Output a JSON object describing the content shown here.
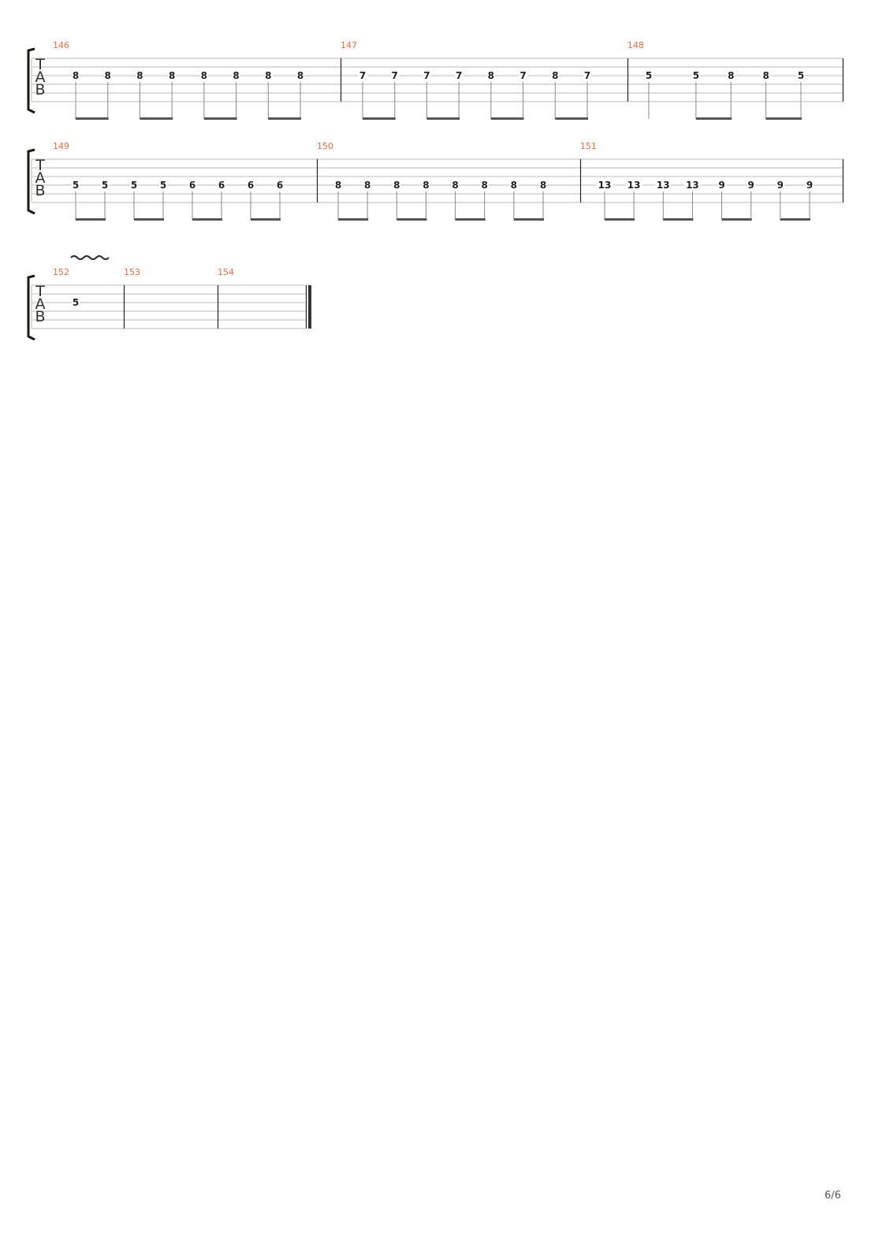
{
  "tab_clef": [
    "T",
    "A",
    "B"
  ],
  "colors": {
    "measure_number": "#f26b3a",
    "staff_line": "#bbbbbb",
    "barline": "#222222",
    "note": "#222222",
    "beam": "#555555"
  },
  "systems": [
    {
      "measures": [
        {
          "number": "146",
          "notes": [
            {
              "fret": "8",
              "string": 3,
              "duration": "eighth"
            },
            {
              "fret": "8",
              "string": 3,
              "duration": "eighth"
            },
            {
              "fret": "8",
              "string": 3,
              "duration": "eighth"
            },
            {
              "fret": "8",
              "string": 3,
              "duration": "eighth"
            },
            {
              "fret": "8",
              "string": 3,
              "duration": "eighth"
            },
            {
              "fret": "8",
              "string": 3,
              "duration": "eighth"
            },
            {
              "fret": "8",
              "string": 3,
              "duration": "eighth"
            },
            {
              "fret": "8",
              "string": 3,
              "duration": "eighth"
            }
          ]
        },
        {
          "number": "147",
          "notes": [
            {
              "fret": "7",
              "string": 3,
              "duration": "eighth"
            },
            {
              "fret": "7",
              "string": 3,
              "duration": "eighth"
            },
            {
              "fret": "7",
              "string": 3,
              "duration": "eighth"
            },
            {
              "fret": "7",
              "string": 3,
              "duration": "eighth"
            },
            {
              "fret": "8",
              "string": 3,
              "duration": "eighth"
            },
            {
              "fret": "7",
              "string": 3,
              "duration": "eighth"
            },
            {
              "fret": "8",
              "string": 3,
              "duration": "eighth"
            },
            {
              "fret": "7",
              "string": 3,
              "duration": "eighth"
            }
          ]
        },
        {
          "number": "148",
          "notes": [
            {
              "fret": "5",
              "string": 3,
              "duration": "quarter"
            },
            {
              "fret": "5",
              "string": 3,
              "duration": "eighth"
            },
            {
              "fret": "8",
              "string": 3,
              "duration": "eighth"
            },
            {
              "fret": "8",
              "string": 3,
              "duration": "eighth"
            },
            {
              "fret": "5",
              "string": 3,
              "duration": "eighth"
            }
          ]
        }
      ]
    },
    {
      "measures": [
        {
          "number": "149",
          "notes": [
            {
              "fret": "5",
              "string": 4,
              "duration": "eighth"
            },
            {
              "fret": "5",
              "string": 4,
              "duration": "eighth"
            },
            {
              "fret": "5",
              "string": 4,
              "duration": "eighth"
            },
            {
              "fret": "5",
              "string": 4,
              "duration": "eighth"
            },
            {
              "fret": "6",
              "string": 4,
              "duration": "eighth"
            },
            {
              "fret": "6",
              "string": 4,
              "duration": "eighth"
            },
            {
              "fret": "6",
              "string": 4,
              "duration": "eighth"
            },
            {
              "fret": "6",
              "string": 4,
              "duration": "eighth"
            }
          ]
        },
        {
          "number": "150",
          "notes": [
            {
              "fret": "8",
              "string": 4,
              "duration": "eighth"
            },
            {
              "fret": "8",
              "string": 4,
              "duration": "eighth"
            },
            {
              "fret": "8",
              "string": 4,
              "duration": "eighth"
            },
            {
              "fret": "8",
              "string": 4,
              "duration": "eighth"
            },
            {
              "fret": "8",
              "string": 4,
              "duration": "eighth"
            },
            {
              "fret": "8",
              "string": 4,
              "duration": "eighth"
            },
            {
              "fret": "8",
              "string": 4,
              "duration": "eighth"
            },
            {
              "fret": "8",
              "string": 4,
              "duration": "eighth"
            }
          ]
        },
        {
          "number": "151",
          "notes": [
            {
              "fret": "13",
              "string": 4,
              "duration": "eighth"
            },
            {
              "fret": "13",
              "string": 4,
              "duration": "eighth"
            },
            {
              "fret": "13",
              "string": 4,
              "duration": "eighth"
            },
            {
              "fret": "13",
              "string": 4,
              "duration": "eighth"
            },
            {
              "fret": "9",
              "string": 4,
              "duration": "eighth"
            },
            {
              "fret": "9",
              "string": 4,
              "duration": "eighth"
            },
            {
              "fret": "9",
              "string": 4,
              "duration": "eighth"
            },
            {
              "fret": "9",
              "string": 4,
              "duration": "eighth"
            }
          ]
        }
      ]
    },
    {
      "measures": [
        {
          "number": "152",
          "notes": [
            {
              "fret": "5",
              "string": 3,
              "duration": "whole",
              "vibrato": true
            }
          ]
        },
        {
          "number": "153",
          "notes": []
        },
        {
          "number": "154",
          "notes": []
        }
      ],
      "final_barline": true
    }
  ],
  "page_number": "6/6"
}
